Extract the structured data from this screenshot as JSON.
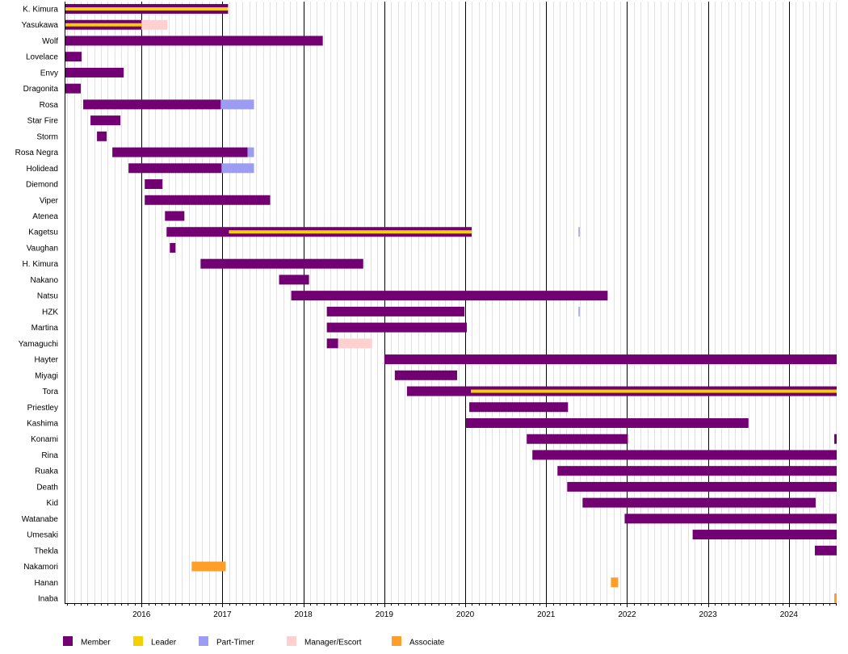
{
  "chart_data": {
    "type": "timeline",
    "title": "",
    "xlim": [
      2015.05,
      2024.59
    ],
    "x_ticks": [
      "2016",
      "2017",
      "2018",
      "2019",
      "2020",
      "2021",
      "2022",
      "2023",
      "2024"
    ],
    "minor_grid": "monthly",
    "legend_position": "bottom",
    "roles": [
      {
        "key": "member",
        "label": "Member",
        "color": "#730073"
      },
      {
        "key": "leader",
        "label": "Leader",
        "color": "#f5d000"
      },
      {
        "key": "parttimer",
        "label": "Part-Timer",
        "color": "#9c9cf2"
      },
      {
        "key": "manager",
        "label": "Manager/Escort",
        "color": "#ffd0d0"
      },
      {
        "key": "associate",
        "label": "Associate",
        "color": "#ff9f2a"
      }
    ],
    "rows": [
      {
        "name": "K. Kimura",
        "spans": [
          [
            "member",
            2015.05,
            2017.07
          ],
          [
            "leader",
            2015.05,
            2017.07
          ]
        ]
      },
      {
        "name": "Yasukawa",
        "spans": [
          [
            "member",
            2015.05,
            2016.0
          ],
          [
            "leader",
            2015.05,
            2016.0
          ],
          [
            "manager",
            2016.0,
            2016.32
          ]
        ]
      },
      {
        "name": "Wolf",
        "spans": [
          [
            "member",
            2015.05,
            2018.24
          ]
        ]
      },
      {
        "name": "Lovelace",
        "spans": [
          [
            "member",
            2015.05,
            2015.26
          ]
        ]
      },
      {
        "name": "Envy",
        "spans": [
          [
            "member",
            2015.05,
            2015.78
          ]
        ]
      },
      {
        "name": "Dragonita",
        "spans": [
          [
            "member",
            2015.05,
            2015.25
          ]
        ]
      },
      {
        "name": "Rosa",
        "spans": [
          [
            "member",
            2015.28,
            2016.98
          ],
          [
            "parttimer",
            2016.98,
            2017.39
          ]
        ]
      },
      {
        "name": "Star Fire",
        "spans": [
          [
            "member",
            2015.37,
            2015.74
          ]
        ]
      },
      {
        "name": "Storm",
        "spans": [
          [
            "member",
            2015.45,
            2015.57
          ]
        ]
      },
      {
        "name": "Rosa Negra",
        "spans": [
          [
            "member",
            2015.64,
            2017.31
          ],
          [
            "parttimer",
            2017.31,
            2017.39
          ]
        ]
      },
      {
        "name": "Holidead",
        "spans": [
          [
            "member",
            2015.84,
            2016.99
          ],
          [
            "parttimer",
            2016.99,
            2017.39
          ]
        ]
      },
      {
        "name": "Diemond",
        "spans": [
          [
            "member",
            2016.04,
            2016.26
          ]
        ]
      },
      {
        "name": "Viper",
        "spans": [
          [
            "member",
            2016.04,
            2017.59
          ]
        ]
      },
      {
        "name": "Atenea",
        "spans": [
          [
            "member",
            2016.29,
            2016.53
          ]
        ]
      },
      {
        "name": "Kagetsu",
        "spans": [
          [
            "member",
            2016.31,
            2020.08
          ],
          [
            "leader",
            2017.08,
            2020.08
          ],
          [
            "parttimer",
            2021.4,
            2021.41
          ]
        ]
      },
      {
        "name": "Vaughan",
        "spans": [
          [
            "member",
            2016.35,
            2016.42
          ]
        ]
      },
      {
        "name": "H. Kimura",
        "spans": [
          [
            "member",
            2016.73,
            2018.74
          ]
        ]
      },
      {
        "name": "Nakano",
        "spans": [
          [
            "member",
            2017.7,
            2018.07
          ]
        ]
      },
      {
        "name": "Natsu",
        "spans": [
          [
            "member",
            2017.85,
            2021.76
          ]
        ]
      },
      {
        "name": "HZK",
        "spans": [
          [
            "member",
            2018.29,
            2019.99
          ],
          [
            "parttimer",
            2021.4,
            2021.41
          ]
        ]
      },
      {
        "name": "Martina",
        "spans": [
          [
            "member",
            2018.29,
            2020.02
          ]
        ]
      },
      {
        "name": "Yamaguchi",
        "spans": [
          [
            "member",
            2018.29,
            2018.43
          ],
          [
            "manager",
            2018.43,
            2018.85
          ]
        ]
      },
      {
        "name": "Hayter",
        "spans": [
          [
            "member",
            2019.0,
            2024.59
          ]
        ]
      },
      {
        "name": "Miyagi",
        "spans": [
          [
            "member",
            2019.13,
            2019.9
          ]
        ]
      },
      {
        "name": "Tora",
        "spans": [
          [
            "member",
            2019.28,
            2024.59
          ],
          [
            "leader",
            2020.07,
            2024.59
          ]
        ]
      },
      {
        "name": "Priestley",
        "spans": [
          [
            "member",
            2020.05,
            2021.27
          ]
        ]
      },
      {
        "name": "Kashima",
        "spans": [
          [
            "member",
            2020.01,
            2023.5
          ]
        ]
      },
      {
        "name": "Konami",
        "spans": [
          [
            "member",
            2020.76,
            2022.01
          ],
          [
            "member",
            2024.56,
            2024.59
          ]
        ]
      },
      {
        "name": "Rina",
        "spans": [
          [
            "member",
            2020.83,
            2024.59
          ]
        ]
      },
      {
        "name": "Ruaka",
        "spans": [
          [
            "member",
            2021.14,
            2024.59
          ]
        ]
      },
      {
        "name": "Death",
        "spans": [
          [
            "member",
            2021.26,
            2024.59
          ]
        ]
      },
      {
        "name": "Kid",
        "spans": [
          [
            "member",
            2021.45,
            2024.33
          ]
        ]
      },
      {
        "name": "Watanabe",
        "spans": [
          [
            "member",
            2021.97,
            2024.59
          ]
        ]
      },
      {
        "name": "Umesaki",
        "spans": [
          [
            "member",
            2022.81,
            2024.59
          ]
        ]
      },
      {
        "name": "Thekla",
        "spans": [
          [
            "member",
            2024.32,
            2024.59
          ]
        ]
      },
      {
        "name": "Nakamori",
        "spans": [
          [
            "associate",
            2016.62,
            2017.04
          ]
        ]
      },
      {
        "name": "Hanan",
        "spans": [
          [
            "associate",
            2021.8,
            2021.89
          ]
        ]
      },
      {
        "name": "Inaba",
        "spans": [
          [
            "associate",
            2024.56,
            2024.59
          ]
        ]
      }
    ]
  }
}
